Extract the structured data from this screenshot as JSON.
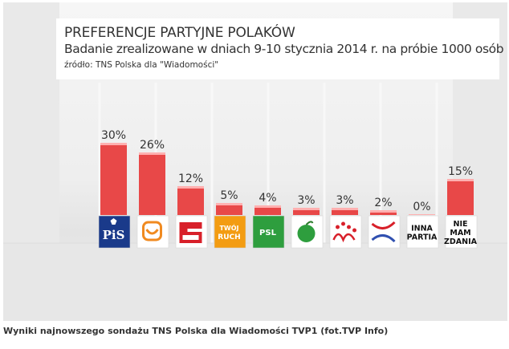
{
  "title": "PREFERENCJE PARTYJNE POLAKÓW",
  "subtitle": "Badanie zrealizowane w dniach 9-10 stycznia 2014 r. na próbie 1000 osób",
  "source": "źródło: TNS Polska dla \"Wiadomości\"",
  "caption": "Wyniki najnowszego sondażu TNS Polska dla Wiadomości TVP1 (fot.TVP Info)",
  "colors": {
    "bar": "#e84848",
    "bar_top": "#ffb0b0",
    "background": "#eeeeee"
  },
  "chart_data": {
    "type": "bar",
    "categories": [
      "PiS",
      "PO",
      "SLD",
      "Twój Ruch",
      "PSL",
      "Solidarna Polska",
      "Ruch Narodowy",
      "Polska Razem",
      "INNA PARTIA",
      "NIE MAM ZDANIA"
    ],
    "values": [
      30,
      26,
      12,
      5,
      4,
      3,
      3,
      2,
      0,
      15
    ],
    "value_labels": [
      "30%",
      "26%",
      "12%",
      "5%",
      "4%",
      "3%",
      "3%",
      "2%",
      "0%",
      "15%"
    ],
    "ylim": [
      0,
      30
    ],
    "grid": false,
    "legend": "none"
  },
  "logos": [
    {
      "icon": "pis-logo",
      "text": "PiS",
      "bg": "#1a3a8a",
      "fg": "#ffffff"
    },
    {
      "icon": "po-logo",
      "text": "",
      "bg": "#ffffff",
      "fg": "#f08a20"
    },
    {
      "icon": "sld-logo",
      "text": "",
      "bg": "#ffffff",
      "fg": "#d8202a"
    },
    {
      "icon": "twoj-ruch-logo",
      "text": "TWÓJ RUCH",
      "bg": "#f39c12",
      "fg": "#ffffff"
    },
    {
      "icon": "psl-logo",
      "text": "PSL",
      "bg": "#2e9e3e",
      "fg": "#ffffff"
    },
    {
      "icon": "solidarna-polska-logo",
      "text": "",
      "bg": "#ffffff",
      "fg": "#2e9e3e"
    },
    {
      "icon": "ruch-narodowy-logo",
      "text": "",
      "bg": "#ffffff",
      "fg": "#d8202a"
    },
    {
      "icon": "polska-razem-logo",
      "text": "",
      "bg": "#ffffff",
      "fg": "#3050b0"
    },
    {
      "icon": "inna-partia-label",
      "text": "INNA PARTIA",
      "lines": [
        "INNA",
        "PARTIA"
      ],
      "bg": "#ffffff",
      "fg": "#111111"
    },
    {
      "icon": "nie-mam-zdania-label",
      "text": "NIE MAM ZDANIA",
      "lines": [
        "NIE",
        "MAM",
        "ZDANIA"
      ],
      "bg": "#ffffff",
      "fg": "#111111"
    }
  ]
}
